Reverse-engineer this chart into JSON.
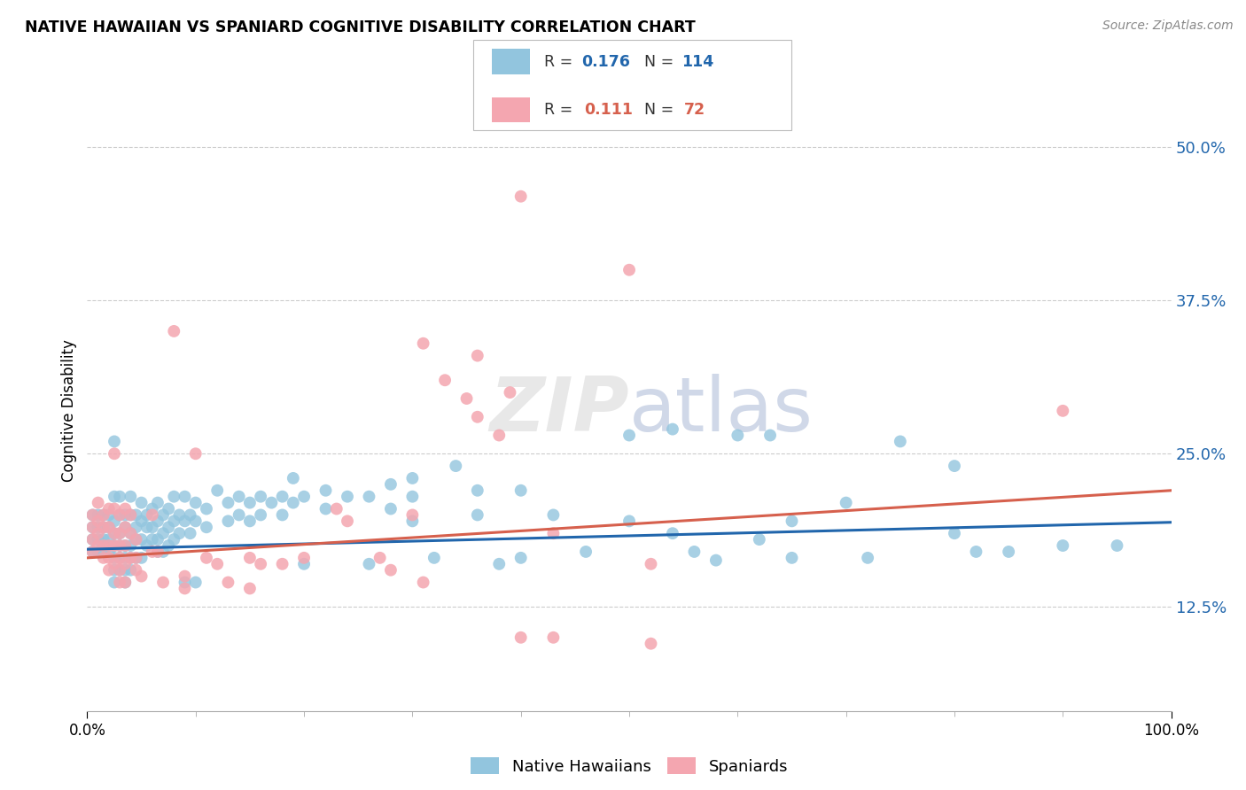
{
  "title": "NATIVE HAWAIIAN VS SPANIARD COGNITIVE DISABILITY CORRELATION CHART",
  "source": "Source: ZipAtlas.com",
  "ylabel": "Cognitive Disability",
  "watermark": "ZIPatlas",
  "blue_color": "#92c5de",
  "pink_color": "#f4a6b0",
  "blue_line_color": "#2166ac",
  "pink_line_color": "#d6604d",
  "blue_R": "0.176",
  "blue_N": "114",
  "pink_R": "0.111",
  "pink_N": "72",
  "blue_intercept": 0.172,
  "blue_slope": 0.022,
  "pink_intercept": 0.165,
  "pink_slope": 0.055,
  "xlim": [
    0.0,
    1.0
  ],
  "ylim": [
    0.04,
    0.53
  ],
  "yticks": [
    0.125,
    0.25,
    0.375,
    0.5
  ],
  "ytick_labels": [
    "12.5%",
    "25.0%",
    "37.5%",
    "50.0%"
  ],
  "blue_scatter": [
    [
      0.005,
      0.2
    ],
    [
      0.005,
      0.19
    ],
    [
      0.005,
      0.18
    ],
    [
      0.005,
      0.17
    ],
    [
      0.01,
      0.2
    ],
    [
      0.01,
      0.19
    ],
    [
      0.01,
      0.18
    ],
    [
      0.01,
      0.17
    ],
    [
      0.015,
      0.2
    ],
    [
      0.015,
      0.19
    ],
    [
      0.015,
      0.18
    ],
    [
      0.015,
      0.17
    ],
    [
      0.02,
      0.2
    ],
    [
      0.02,
      0.19
    ],
    [
      0.02,
      0.18
    ],
    [
      0.02,
      0.17
    ],
    [
      0.025,
      0.26
    ],
    [
      0.025,
      0.215
    ],
    [
      0.025,
      0.195
    ],
    [
      0.025,
      0.185
    ],
    [
      0.025,
      0.175
    ],
    [
      0.025,
      0.165
    ],
    [
      0.025,
      0.155
    ],
    [
      0.025,
      0.145
    ],
    [
      0.03,
      0.215
    ],
    [
      0.03,
      0.2
    ],
    [
      0.03,
      0.185
    ],
    [
      0.03,
      0.175
    ],
    [
      0.03,
      0.165
    ],
    [
      0.03,
      0.155
    ],
    [
      0.035,
      0.2
    ],
    [
      0.035,
      0.19
    ],
    [
      0.035,
      0.175
    ],
    [
      0.035,
      0.165
    ],
    [
      0.035,
      0.155
    ],
    [
      0.035,
      0.145
    ],
    [
      0.04,
      0.215
    ],
    [
      0.04,
      0.2
    ],
    [
      0.04,
      0.185
    ],
    [
      0.04,
      0.175
    ],
    [
      0.04,
      0.165
    ],
    [
      0.04,
      0.155
    ],
    [
      0.045,
      0.2
    ],
    [
      0.045,
      0.19
    ],
    [
      0.045,
      0.18
    ],
    [
      0.045,
      0.165
    ],
    [
      0.05,
      0.21
    ],
    [
      0.05,
      0.195
    ],
    [
      0.05,
      0.18
    ],
    [
      0.05,
      0.165
    ],
    [
      0.055,
      0.2
    ],
    [
      0.055,
      0.19
    ],
    [
      0.055,
      0.175
    ],
    [
      0.06,
      0.205
    ],
    [
      0.06,
      0.19
    ],
    [
      0.06,
      0.18
    ],
    [
      0.065,
      0.21
    ],
    [
      0.065,
      0.195
    ],
    [
      0.065,
      0.18
    ],
    [
      0.065,
      0.17
    ],
    [
      0.07,
      0.2
    ],
    [
      0.07,
      0.185
    ],
    [
      0.07,
      0.17
    ],
    [
      0.075,
      0.205
    ],
    [
      0.075,
      0.19
    ],
    [
      0.075,
      0.175
    ],
    [
      0.08,
      0.215
    ],
    [
      0.08,
      0.195
    ],
    [
      0.08,
      0.18
    ],
    [
      0.085,
      0.2
    ],
    [
      0.085,
      0.185
    ],
    [
      0.09,
      0.215
    ],
    [
      0.09,
      0.195
    ],
    [
      0.09,
      0.145
    ],
    [
      0.095,
      0.2
    ],
    [
      0.095,
      0.185
    ],
    [
      0.1,
      0.21
    ],
    [
      0.1,
      0.195
    ],
    [
      0.1,
      0.145
    ],
    [
      0.11,
      0.205
    ],
    [
      0.11,
      0.19
    ],
    [
      0.12,
      0.22
    ],
    [
      0.13,
      0.21
    ],
    [
      0.13,
      0.195
    ],
    [
      0.14,
      0.215
    ],
    [
      0.14,
      0.2
    ],
    [
      0.15,
      0.21
    ],
    [
      0.15,
      0.195
    ],
    [
      0.16,
      0.215
    ],
    [
      0.16,
      0.2
    ],
    [
      0.17,
      0.21
    ],
    [
      0.18,
      0.215
    ],
    [
      0.18,
      0.2
    ],
    [
      0.19,
      0.23
    ],
    [
      0.19,
      0.21
    ],
    [
      0.2,
      0.215
    ],
    [
      0.2,
      0.16
    ],
    [
      0.22,
      0.22
    ],
    [
      0.22,
      0.205
    ],
    [
      0.24,
      0.215
    ],
    [
      0.26,
      0.215
    ],
    [
      0.26,
      0.16
    ],
    [
      0.28,
      0.225
    ],
    [
      0.28,
      0.205
    ],
    [
      0.3,
      0.23
    ],
    [
      0.3,
      0.215
    ],
    [
      0.3,
      0.195
    ],
    [
      0.32,
      0.165
    ],
    [
      0.34,
      0.24
    ],
    [
      0.36,
      0.22
    ],
    [
      0.36,
      0.2
    ],
    [
      0.38,
      0.16
    ],
    [
      0.4,
      0.22
    ],
    [
      0.4,
      0.165
    ],
    [
      0.43,
      0.2
    ],
    [
      0.46,
      0.17
    ],
    [
      0.5,
      0.265
    ],
    [
      0.5,
      0.195
    ],
    [
      0.54,
      0.27
    ],
    [
      0.54,
      0.185
    ],
    [
      0.56,
      0.17
    ],
    [
      0.58,
      0.163
    ],
    [
      0.6,
      0.265
    ],
    [
      0.62,
      0.18
    ],
    [
      0.63,
      0.265
    ],
    [
      0.65,
      0.195
    ],
    [
      0.65,
      0.165
    ],
    [
      0.7,
      0.21
    ],
    [
      0.72,
      0.165
    ],
    [
      0.75,
      0.26
    ],
    [
      0.8,
      0.24
    ],
    [
      0.8,
      0.185
    ],
    [
      0.82,
      0.17
    ],
    [
      0.85,
      0.17
    ],
    [
      0.9,
      0.175
    ],
    [
      0.95,
      0.175
    ]
  ],
  "pink_scatter": [
    [
      0.005,
      0.2
    ],
    [
      0.005,
      0.19
    ],
    [
      0.005,
      0.18
    ],
    [
      0.005,
      0.17
    ],
    [
      0.01,
      0.21
    ],
    [
      0.01,
      0.195
    ],
    [
      0.01,
      0.185
    ],
    [
      0.01,
      0.175
    ],
    [
      0.015,
      0.2
    ],
    [
      0.015,
      0.19
    ],
    [
      0.015,
      0.175
    ],
    [
      0.015,
      0.165
    ],
    [
      0.02,
      0.205
    ],
    [
      0.02,
      0.19
    ],
    [
      0.02,
      0.175
    ],
    [
      0.02,
      0.165
    ],
    [
      0.02,
      0.155
    ],
    [
      0.025,
      0.25
    ],
    [
      0.025,
      0.205
    ],
    [
      0.025,
      0.185
    ],
    [
      0.025,
      0.175
    ],
    [
      0.025,
      0.16
    ],
    [
      0.03,
      0.2
    ],
    [
      0.03,
      0.185
    ],
    [
      0.03,
      0.175
    ],
    [
      0.03,
      0.165
    ],
    [
      0.03,
      0.155
    ],
    [
      0.03,
      0.145
    ],
    [
      0.035,
      0.205
    ],
    [
      0.035,
      0.19
    ],
    [
      0.035,
      0.175
    ],
    [
      0.035,
      0.16
    ],
    [
      0.035,
      0.145
    ],
    [
      0.04,
      0.2
    ],
    [
      0.04,
      0.185
    ],
    [
      0.04,
      0.165
    ],
    [
      0.045,
      0.18
    ],
    [
      0.045,
      0.165
    ],
    [
      0.045,
      0.155
    ],
    [
      0.05,
      0.15
    ],
    [
      0.06,
      0.2
    ],
    [
      0.06,
      0.17
    ],
    [
      0.065,
      0.17
    ],
    [
      0.07,
      0.145
    ],
    [
      0.08,
      0.35
    ],
    [
      0.09,
      0.15
    ],
    [
      0.09,
      0.14
    ],
    [
      0.1,
      0.25
    ],
    [
      0.11,
      0.165
    ],
    [
      0.12,
      0.16
    ],
    [
      0.13,
      0.145
    ],
    [
      0.15,
      0.165
    ],
    [
      0.15,
      0.14
    ],
    [
      0.16,
      0.16
    ],
    [
      0.18,
      0.16
    ],
    [
      0.2,
      0.165
    ],
    [
      0.23,
      0.205
    ],
    [
      0.24,
      0.195
    ],
    [
      0.27,
      0.165
    ],
    [
      0.28,
      0.155
    ],
    [
      0.3,
      0.2
    ],
    [
      0.31,
      0.34
    ],
    [
      0.31,
      0.145
    ],
    [
      0.33,
      0.31
    ],
    [
      0.35,
      0.295
    ],
    [
      0.36,
      0.33
    ],
    [
      0.36,
      0.28
    ],
    [
      0.38,
      0.265
    ],
    [
      0.39,
      0.3
    ],
    [
      0.4,
      0.46
    ],
    [
      0.4,
      0.1
    ],
    [
      0.43,
      0.185
    ],
    [
      0.43,
      0.1
    ],
    [
      0.5,
      0.4
    ],
    [
      0.52,
      0.16
    ],
    [
      0.52,
      0.095
    ],
    [
      0.9,
      0.285
    ]
  ]
}
